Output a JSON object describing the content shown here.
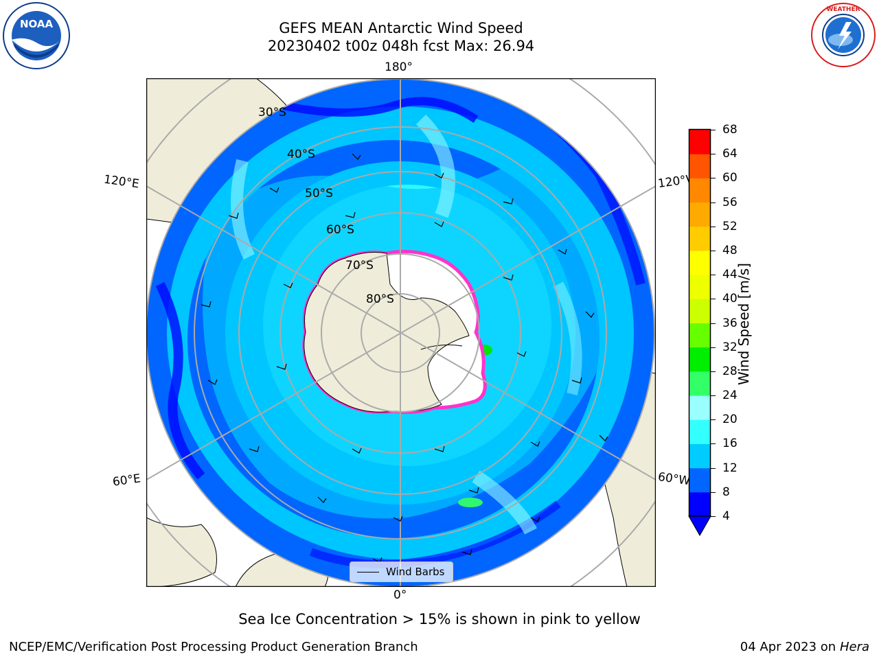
{
  "title_line1": "GEFS MEAN Antarctic Wind Speed",
  "title_line2": "20230402 t00z 048h fcst   Max: 26.94",
  "logos": {
    "left": "NOAA",
    "right": "NATIONAL WEATHER SERVICE"
  },
  "map": {
    "longitude_labels": {
      "top": "180°",
      "bottom": "0°",
      "left_upper": "120°E",
      "left_lower": "60°E",
      "right_upper": "120°W",
      "right_lower": "60°W"
    },
    "latitude_labels": [
      "30°S",
      "40°S",
      "50°S",
      "60°S",
      "70°S",
      "80°S"
    ],
    "legend_label": "Wind Barbs",
    "colors": {
      "land": "#efedd9",
      "ice": "#ffffff",
      "ice_edge": "#ff33cc"
    }
  },
  "colorbar": {
    "label": "Wind Speed [m/s]",
    "ticks": [
      "68",
      "64",
      "60",
      "56",
      "52",
      "48",
      "44",
      "40",
      "36",
      "32",
      "28",
      "24",
      "20",
      "16",
      "12",
      "8",
      "4"
    ],
    "colors": [
      "#0000ff",
      "#0066ff",
      "#00ccff",
      "#33ffff",
      "#99ffff",
      "#33ff66",
      "#00ee00",
      "#66ff00",
      "#ccff00",
      "#eeff00",
      "#ffff00",
      "#ffcc00",
      "#ffaa00",
      "#ff8800",
      "#ff5500",
      "#ff0000"
    ]
  },
  "caption": "Sea Ice Concentration > 15% is shown in pink to yellow",
  "footer_left": "NCEP/EMC/Verification Post Processing Product Generation Branch",
  "footer_right_date": "04 Apr 2023 on ",
  "footer_right_host": "Hera"
}
